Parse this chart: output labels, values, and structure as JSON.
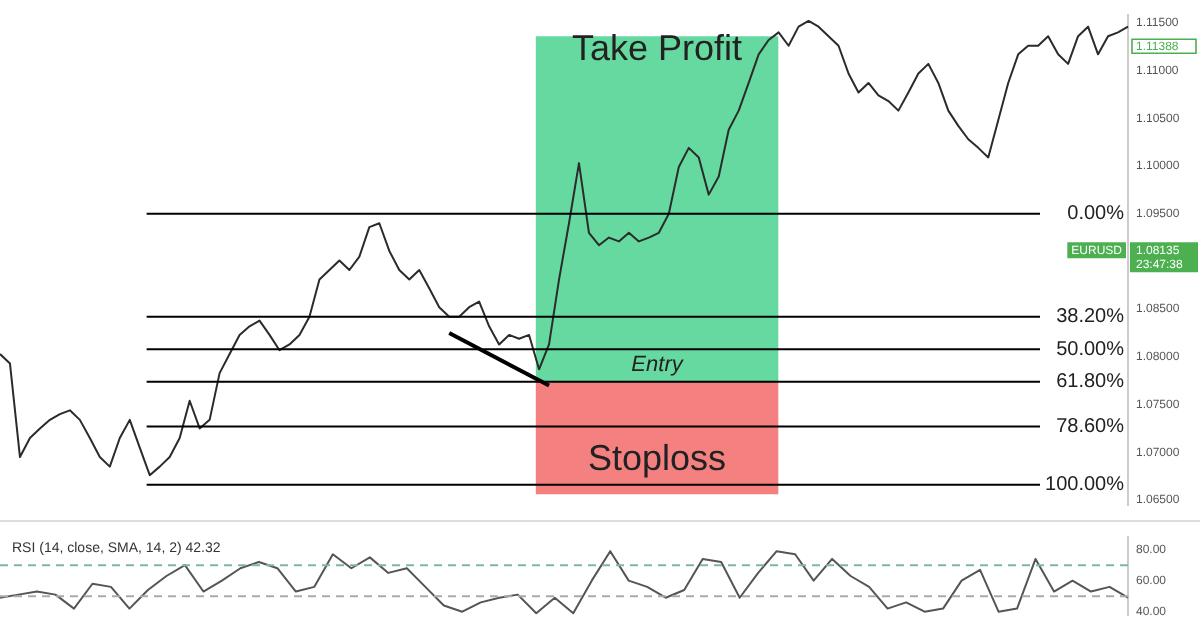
{
  "chart_data": [
    {
      "type": "line",
      "categories": [
        null,
        null,
        null,
        null,
        null,
        null,
        null,
        null,
        null,
        null,
        null,
        null,
        null,
        null,
        null,
        null,
        null,
        null,
        null,
        null,
        null,
        null,
        null,
        null,
        null,
        null,
        null,
        null,
        null,
        null,
        null,
        null,
        null,
        null,
        null,
        null,
        null,
        null,
        null,
        null,
        null,
        null,
        null,
        null,
        null,
        null,
        null,
        null,
        null,
        null,
        null,
        null,
        null,
        null,
        null,
        null,
        null,
        null,
        null,
        null,
        null,
        null,
        null,
        null,
        null,
        null,
        null,
        null,
        null,
        null,
        null,
        null,
        null,
        null,
        null,
        null,
        null,
        null,
        null,
        null,
        null,
        null,
        null,
        null,
        null,
        null,
        null,
        null,
        null,
        null,
        null,
        null,
        null,
        null,
        null,
        null,
        null,
        null,
        null,
        null,
        null,
        null,
        null,
        null,
        null,
        null,
        null,
        null,
        null,
        null,
        null,
        null,
        null,
        null
      ],
      "series": [
        {
          "color": "#2b2b2b",
          "values": [
            1.0803,
            1.0793,
            1.0695,
            1.0715,
            1.0725,
            1.0734,
            1.074,
            1.0744,
            1.0734,
            1.0715,
            1.0695,
            1.0685,
            1.0715,
            1.0734,
            1.0705,
            1.0676,
            1.0685,
            1.0695,
            1.0715,
            1.0754,
            1.0725,
            1.0734,
            1.0783,
            1.0803,
            1.0823,
            1.0832,
            1.0838,
            1.0823,
            1.0807,
            1.0813,
            1.0823,
            1.0842,
            1.0881,
            1.0891,
            1.0901,
            1.0891,
            1.0905,
            1.0936,
            1.094,
            1.0911,
            1.0891,
            1.0881,
            1.0891,
            1.0872,
            1.0852,
            1.0842,
            1.0842,
            1.0852,
            1.0858,
            1.0832,
            1.0813,
            1.0823,
            1.0819,
            1.0823,
            1.0787,
            1.0813,
            1.0881,
            1.094,
            1.1003,
            1.093,
            1.0917,
            1.0925,
            1.0921,
            1.093,
            1.0921,
            1.0925,
            1.093,
            1.095,
            1.0999,
            1.1019,
            1.1009,
            1.097,
            1.0989,
            1.1038,
            1.1058,
            1.1087,
            1.1117,
            1.1132,
            1.114,
            1.1126,
            1.1146,
            1.1152,
            1.1146,
            1.1136,
            1.1126,
            1.1097,
            1.1077,
            1.1087,
            1.1074,
            1.1068,
            1.1058,
            1.1077,
            1.1097,
            1.1107,
            1.1087,
            1.1058,
            1.1042,
            1.1028,
            1.1019,
            1.1009,
            1.1048,
            1.1087,
            1.1117,
            1.1126,
            1.1126,
            1.1136,
            1.1117,
            1.1107,
            1.1136,
            1.1146,
            1.1117,
            1.1136,
            1.114,
            1.1146
          ]
        },
        {
          "color": "#000000",
          "values": [
            null,
            null,
            null,
            null,
            null,
            null,
            null,
            null,
            null,
            null,
            null,
            null,
            null,
            null,
            null,
            null,
            null,
            null,
            null,
            null,
            null,
            null,
            null,
            null,
            null,
            null,
            null,
            null,
            null,
            null,
            null,
            null,
            null,
            null,
            null,
            null,
            null,
            null,
            null,
            null,
            null,
            null,
            null,
            null,
            null,
            1.0825,
            null,
            null,
            null,
            null,
            null,
            null,
            null,
            null,
            null,
            1.077,
            null,
            null,
            null,
            null,
            null,
            null,
            null,
            null,
            null,
            null,
            null,
            null,
            null,
            null,
            null,
            null,
            null,
            null,
            null,
            null,
            null,
            null,
            null,
            null,
            null,
            null,
            null,
            null,
            null,
            null,
            null,
            null,
            null,
            null,
            null,
            null,
            null,
            null,
            null,
            null,
            null,
            null,
            null,
            null,
            null,
            null,
            null,
            null,
            null,
            null,
            null,
            null,
            null,
            null,
            null,
            null,
            null,
            null
          ]
        }
      ],
      "ylim": [
        1.0645,
        1.1158
      ],
      "yticks": [
        {
          "value": 1.065,
          "label": "1.06500"
        },
        {
          "value": 1.07,
          "label": "1.07000"
        },
        {
          "value": 1.075,
          "label": "1.07500"
        },
        {
          "value": 1.08,
          "label": "1.08000"
        },
        {
          "value": 1.085,
          "label": "1.08500"
        },
        {
          "value": 1.095,
          "label": "1.09500"
        },
        {
          "value": 1.1,
          "label": "1.10000"
        },
        {
          "value": 1.105,
          "label": "1.10500"
        },
        {
          "value": 1.11,
          "label": "1.11000"
        },
        {
          "value": 1.115,
          "label": "1.11500"
        }
      ],
      "tick_labels": "y",
      "bands": [
        {
          "axis": "y",
          "from": 1.0774,
          "to": 1.1136,
          "label": "Take Profit",
          "color": "#66d9a0"
        },
        {
          "axis": "y",
          "from": 1.0774,
          "to": 1.0656,
          "label": "Stoploss",
          "color": "#f58080"
        }
      ],
      "ref_lines": [
        {
          "axis": "y",
          "value": 1.095,
          "line_style": "solid"
        },
        {
          "axis": "y",
          "value": 1.0842,
          "line_style": "solid"
        },
        {
          "axis": "y",
          "value": 1.0808,
          "line_style": "solid"
        },
        {
          "axis": "y",
          "value": 1.0774,
          "line_style": "solid"
        },
        {
          "axis": "y",
          "value": 1.0727,
          "line_style": "solid"
        },
        {
          "axis": "y",
          "value": 1.0666,
          "line_style": "solid"
        }
      ],
      "annotations": [
        {
          "text": "Entry",
          "y": 1.0774
        },
        "0.00%",
        "38.20%",
        "50.00%",
        "61.80%",
        "78.60%",
        "100.00%",
        "EURUSD",
        "1.08135",
        "23:47:38",
        "1.11388"
      ]
    },
    {
      "type": "line",
      "title": "RSI (14, close, SMA, 14, 2) 42.32",
      "categories": [
        null,
        null,
        null,
        null,
        null,
        null,
        null,
        null,
        null,
        null,
        null,
        null,
        null,
        null,
        null,
        null,
        null,
        null,
        null,
        null,
        null,
        null,
        null,
        null,
        null,
        null,
        null,
        null,
        null,
        null,
        null,
        null,
        null,
        null,
        null,
        null,
        null,
        null,
        null,
        null,
        null,
        null,
        null,
        null,
        null,
        null,
        null,
        null,
        null,
        null,
        null,
        null,
        null,
        null,
        null,
        null,
        null,
        null,
        null,
        null,
        null,
        null
      ],
      "series": [
        {
          "color": "#555555",
          "values": [
            49,
            51,
            53,
            51,
            42,
            58,
            56,
            42,
            54,
            63,
            70,
            53,
            60,
            68,
            72,
            68,
            53,
            56,
            77,
            68,
            75,
            65,
            68,
            56,
            44,
            40,
            46,
            49,
            51,
            39,
            49,
            39,
            60,
            79,
            60,
            56,
            49,
            54,
            74,
            72,
            49,
            65,
            79,
            77,
            60,
            74,
            63,
            56,
            42,
            46,
            40,
            42,
            60,
            67,
            40,
            42,
            74,
            53,
            60,
            53,
            56,
            49
          ]
        }
      ],
      "ylim": [
        38,
        88
      ],
      "yticks": [
        {
          "value": 40,
          "label": "40.00"
        },
        {
          "value": 60,
          "label": "60.00"
        },
        {
          "value": 80,
          "label": "80.00"
        }
      ],
      "tick_labels": "y",
      "ref_lines": [
        {
          "axis": "y",
          "value": 70,
          "color": "#7fb8a0",
          "line_style": "dashed"
        },
        {
          "axis": "y",
          "value": 50,
          "color": "#aaaaaa",
          "line_style": "dashed"
        }
      ]
    }
  ]
}
